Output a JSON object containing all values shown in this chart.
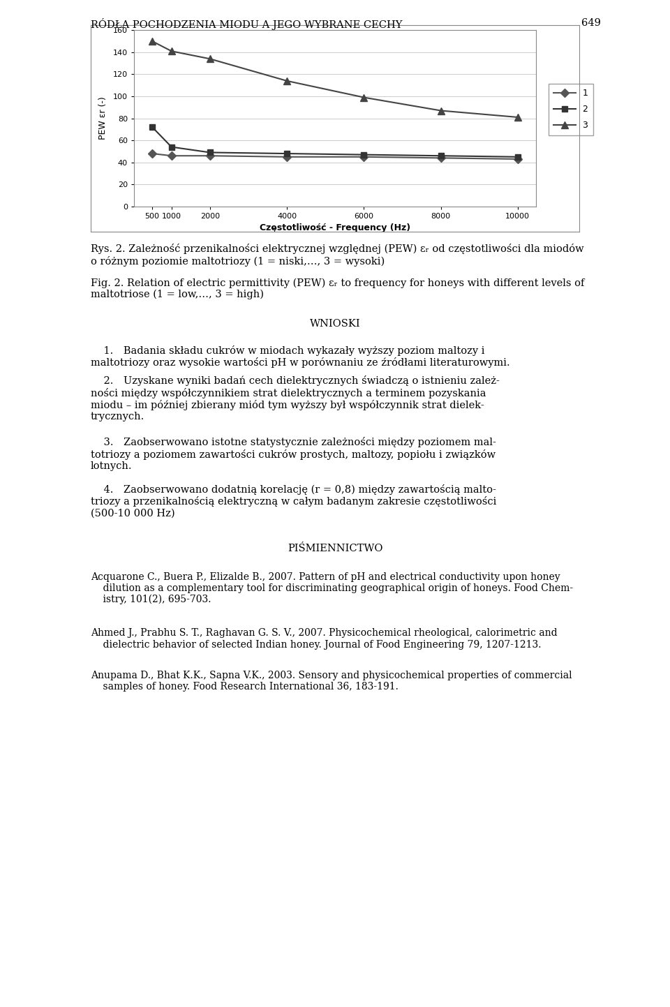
{
  "frequencies": [
    500,
    1000,
    2000,
    4000,
    6000,
    8000,
    10000
  ],
  "series": [
    {
      "label": "1",
      "values": [
        48,
        46,
        46,
        45,
        45,
        44,
        43
      ],
      "color": "#555555",
      "marker": "D",
      "markersize": 6,
      "linewidth": 1.5
    },
    {
      "label": "2",
      "values": [
        72,
        54,
        49,
        48,
        47,
        46,
        45
      ],
      "color": "#333333",
      "marker": "s",
      "markersize": 6,
      "linewidth": 1.5
    },
    {
      "label": "3",
      "values": [
        150,
        141,
        134,
        114,
        99,
        87,
        81
      ],
      "color": "#444444",
      "marker": "^",
      "markersize": 7,
      "linewidth": 1.5
    }
  ],
  "ylabel": "PEW εr (-)",
  "xlabel": "Częstotliwość - Frequency (Hz)",
  "ylim": [
    0,
    160
  ],
  "yticks": [
    0,
    20,
    40,
    60,
    80,
    100,
    120,
    140,
    160
  ],
  "xticks": [
    500,
    1000,
    2000,
    4000,
    6000,
    8000,
    10000
  ],
  "xticklabels": [
    "500",
    "1000",
    "2000",
    "4000",
    "6000",
    "8000",
    "10000"
  ],
  "grid_color": "#cccccc",
  "figure_bg": "#ffffff",
  "axes_bg": "#ffffff",
  "border_color": "#888888",
  "header": "RÓDŁA POCHODZENIA MIODU A JEGO WYBRANE CECHY",
  "page_number": "649",
  "caption_pl": "Rys. 2. Zależność przenikalności elektrycznej względnej (PEW) εr od częstotliwości dla miodów\no różnym poziomie maltotriozy (1 = niski,…, 3 = wysoki)",
  "caption_en": "Fig. 2. Relation of electric permittivity (PEW) εr to frequency for honeys with different levels of\nmaltotriose (1 = low,…, 3 = high)",
  "wnioski_header": "WNIOSKI",
  "section1": "1. Badania składu cukrów w miodach wykazały wyższy poziom maltozy i\nmaltotriozy oraz wysokie wartości pH w porównaniu ze źródłami literaturowymi.",
  "section2": "2. Uzyskane wyniki badań cech dielektrycznych świadczą o istnieniu zależ-\nności między współczynnikiem strat dielektrycznych a terminem pozyskania\nmiodu – im później zbierany miód tym wyższy był współczynnik strat dielek-\ntrycznych.",
  "section3": "3. Zaobserwowano istotne statystycznie zależności między poziomem mal-\ntotriozy a poziomem zawartości cukrów prostych, maltozy, popiołu i związków\nlotnych.",
  "section4": "4. Zaobserwowano dodatnią korelację (r = 0,8) między zawartością malto-\ntriozy a przenikalnością elektryczną w całym badanym zakresie częstotliwości\n(500-10 000 Hz)",
  "pismiennictwo_header": "PIŚMIENNICTWO",
  "ref1_first": "Acquarone C., Buera P., Elizalde B., 2007. Pattern of pH and electrical conductivity upon honey",
  "ref1_cont": "dilution as a complementary tool for discriminating geographical origin of honeys. Food Chem-\nistry, 101(2), 695-703.",
  "ref2_first": "Ahmed J., Prabhu S. T., Raghavan G. S. V., 2007. Physicochemical rheological, calorimetric and",
  "ref2_cont": "dielectric behavior of selected Indian honey. Journal of Food Engineering 79, 1207-1213.",
  "ref3_first": "Anupama D., Bhat K.K., Sapna V.K., 2003. Sensory and physicochemical properties of commercial",
  "ref3_cont": "samples of honey. Food Research International 36, 183-191."
}
